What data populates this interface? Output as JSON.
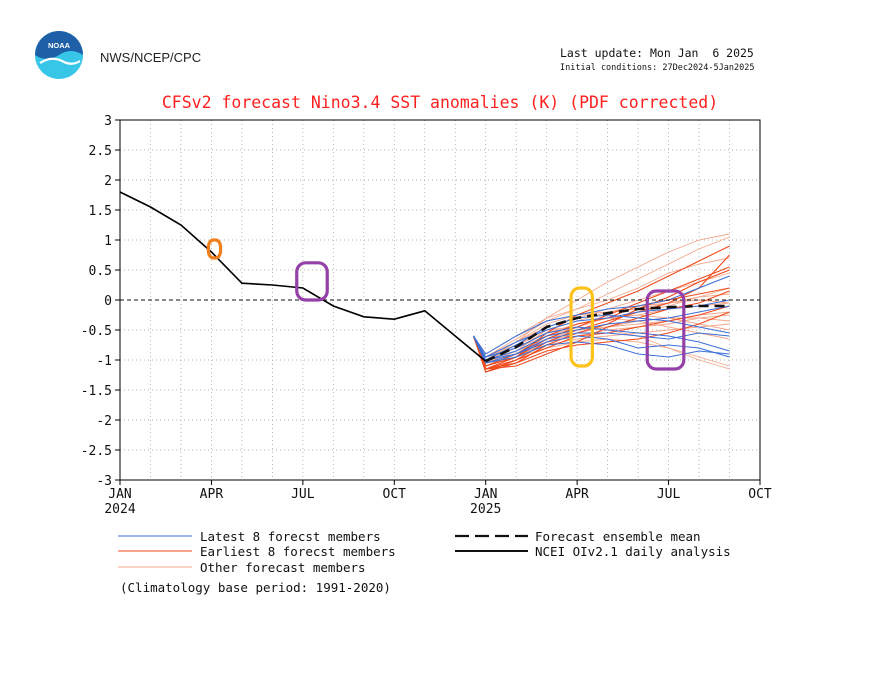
{
  "header": {
    "agency": "NWS/NCEP/CPC",
    "logo_text": "NOAA",
    "last_update": "Last update: Mon Jan  6 2025",
    "initial_conditions": "Initial conditions: 27Dec2024-5Jan2025"
  },
  "colors": {
    "title": "#ff2020",
    "latest": "#3a6fd8",
    "earliest": "#f04a1c",
    "other": "#f4a78c",
    "mean": "#111111",
    "observed": "#000000",
    "marker_orange": "#f07f1c",
    "marker_purple": "#9440a8",
    "marker_yellow": "#ffc21a",
    "logo_blue": "#1f5fa8",
    "logo_cyan": "#37c6e8"
  },
  "chart_data": {
    "type": "line",
    "title": "CFSv2 forecast Nino3.4 SST anomalies (K) (PDF corrected)",
    "xlabel": "",
    "ylabel": "",
    "ylim": [
      -3,
      3
    ],
    "yticks": [
      "3",
      "2.5",
      "2",
      "1.5",
      "1",
      "0.5",
      "0",
      "-0.5",
      "-1",
      "-1.5",
      "-2",
      "-2.5",
      "-3"
    ],
    "ytick_values": [
      3,
      2.5,
      2,
      1.5,
      1,
      0.5,
      0,
      -0.5,
      -1,
      -1.5,
      -2,
      -2.5,
      -3
    ],
    "x_range_months": [
      0,
      21
    ],
    "xticks": [
      {
        "month": 0,
        "label": "JAN",
        "year": "2024"
      },
      {
        "month": 3,
        "label": "APR",
        "year": ""
      },
      {
        "month": 6,
        "label": "JUL",
        "year": ""
      },
      {
        "month": 9,
        "label": "OCT",
        "year": ""
      },
      {
        "month": 12,
        "label": "JAN",
        "year": "2025"
      },
      {
        "month": 15,
        "label": "APR",
        "year": ""
      },
      {
        "month": 18,
        "label": "JUL",
        "year": ""
      },
      {
        "month": 21,
        "label": "OCT",
        "year": ""
      }
    ],
    "observed": {
      "name": "NCEI OIv2.1 daily analysis",
      "x": [
        0,
        1,
        2,
        3,
        4,
        5,
        6,
        7,
        8,
        9,
        10,
        11,
        12
      ],
      "y": [
        1.8,
        1.55,
        1.25,
        0.8,
        0.28,
        0.25,
        0.2,
        -0.1,
        -0.28,
        -0.32,
        -0.18,
        -0.6,
        -1.02
      ]
    },
    "ensemble_mean": {
      "name": "Forecast ensemble mean",
      "x": [
        12,
        13,
        14,
        15,
        16,
        17,
        18,
        19,
        20
      ],
      "y": [
        -1.02,
        -0.78,
        -0.45,
        -0.3,
        -0.22,
        -0.15,
        -0.12,
        -0.1,
        -0.1
      ]
    },
    "member_x": [
      11.6,
      12,
      13,
      14,
      15,
      16,
      17,
      18,
      19,
      20
    ],
    "latest_members": {
      "name": "Latest 8 forecst members",
      "values": [
        [
          -0.6,
          -1.0,
          -0.9,
          -0.7,
          -0.6,
          -0.65,
          -0.8,
          -0.75,
          -0.8,
          -0.95
        ],
        [
          -0.6,
          -0.95,
          -0.8,
          -0.55,
          -0.45,
          -0.5,
          -0.55,
          -0.6,
          -0.7,
          -0.85
        ],
        [
          -0.6,
          -1.05,
          -0.95,
          -0.75,
          -0.7,
          -0.75,
          -0.9,
          -0.95,
          -0.85,
          -0.9
        ],
        [
          -0.6,
          -0.95,
          -0.7,
          -0.5,
          -0.35,
          -0.3,
          -0.2,
          -0.15,
          -0.1,
          0.0
        ],
        [
          -0.6,
          -1.0,
          -0.85,
          -0.6,
          -0.5,
          -0.4,
          -0.35,
          -0.3,
          -0.2,
          -0.1
        ],
        [
          -0.6,
          -0.9,
          -0.6,
          -0.35,
          -0.25,
          -0.15,
          -0.1,
          0.0,
          0.2,
          0.4
        ],
        [
          -0.6,
          -1.05,
          -0.9,
          -0.65,
          -0.55,
          -0.55,
          -0.6,
          -0.65,
          -0.55,
          -0.6
        ],
        [
          -0.6,
          -1.0,
          -0.75,
          -0.45,
          -0.3,
          -0.25,
          -0.3,
          -0.35,
          -0.45,
          -0.55
        ]
      ]
    },
    "earliest_members": {
      "name": "Earliest 8 forecst members",
      "values": [
        [
          -0.6,
          -1.15,
          -0.95,
          -0.55,
          -0.25,
          -0.05,
          0.15,
          0.4,
          0.65,
          0.9
        ],
        [
          -0.6,
          -1.2,
          -1.0,
          -0.7,
          -0.5,
          -0.35,
          -0.2,
          -0.05,
          0.2,
          0.75
        ],
        [
          -0.6,
          -1.15,
          -1.05,
          -0.85,
          -0.75,
          -0.7,
          -0.65,
          -0.55,
          -0.4,
          -0.2
        ],
        [
          -0.6,
          -1.1,
          -0.9,
          -0.6,
          -0.4,
          -0.3,
          -0.1,
          0.0,
          0.1,
          0.2
        ],
        [
          -0.6,
          -1.2,
          -1.05,
          -0.75,
          -0.55,
          -0.4,
          -0.15,
          0.05,
          0.3,
          0.5
        ],
        [
          -0.6,
          -1.15,
          -1.1,
          -0.9,
          -0.7,
          -0.45,
          -0.3,
          -0.15,
          -0.05,
          0.15
        ],
        [
          -0.6,
          -1.1,
          -0.95,
          -0.65,
          -0.45,
          -0.25,
          -0.05,
          0.15,
          0.35,
          0.55
        ],
        [
          -0.6,
          -1.15,
          -1.0,
          -0.8,
          -0.6,
          -0.55,
          -0.45,
          -0.35,
          -0.25,
          -0.1
        ]
      ]
    },
    "other_members": {
      "name": "Other forecast members",
      "values": [
        [
          -0.6,
          -1.0,
          -0.7,
          -0.3,
          0.0,
          0.3,
          0.55,
          0.8,
          1.0,
          1.1
        ],
        [
          -0.6,
          -0.95,
          -0.65,
          -0.35,
          -0.15,
          0.1,
          0.35,
          0.6,
          0.85,
          1.05
        ],
        [
          -0.6,
          -1.05,
          -0.85,
          -0.6,
          -0.5,
          -0.45,
          -0.4,
          -0.35,
          -0.25,
          -0.2
        ],
        [
          -0.6,
          -1.0,
          -0.75,
          -0.5,
          -0.45,
          -0.5,
          -0.6,
          -0.8,
          -1.0,
          -1.15
        ],
        [
          -0.6,
          -0.95,
          -0.7,
          -0.4,
          -0.25,
          -0.2,
          -0.15,
          -0.05,
          0.05,
          0.1
        ],
        [
          -0.6,
          -1.1,
          -0.95,
          -0.7,
          -0.55,
          -0.45,
          -0.35,
          -0.3,
          -0.3,
          -0.35
        ],
        [
          -0.6,
          -1.0,
          -0.8,
          -0.55,
          -0.4,
          -0.3,
          -0.25,
          -0.15,
          -0.1,
          -0.05
        ],
        [
          -0.6,
          -0.9,
          -0.6,
          -0.3,
          -0.15,
          0.0,
          0.2,
          0.45,
          0.6,
          0.7
        ],
        [
          -0.6,
          -1.05,
          -0.9,
          -0.75,
          -0.65,
          -0.6,
          -0.55,
          -0.5,
          -0.45,
          -0.4
        ],
        [
          -0.6,
          -1.0,
          -0.85,
          -0.65,
          -0.5,
          -0.35,
          -0.2,
          -0.1,
          0.05,
          0.2
        ],
        [
          -0.6,
          -0.95,
          -0.8,
          -0.6,
          -0.45,
          -0.3,
          -0.25,
          -0.3,
          -0.4,
          -0.5
        ],
        [
          -0.6,
          -1.1,
          -0.95,
          -0.8,
          -0.7,
          -0.65,
          -0.7,
          -0.8,
          -0.95,
          -1.1
        ],
        [
          -0.6,
          -1.0,
          -0.7,
          -0.45,
          -0.3,
          -0.15,
          0.0,
          0.15,
          0.3,
          0.45
        ],
        [
          -0.6,
          -0.95,
          -0.75,
          -0.55,
          -0.4,
          -0.3,
          -0.35,
          -0.45,
          -0.55,
          -0.65
        ],
        [
          -0.6,
          -1.05,
          -0.85,
          -0.5,
          -0.35,
          -0.2,
          -0.1,
          -0.05,
          0.0,
          -0.05
        ],
        [
          -0.6,
          -1.0,
          -0.9,
          -0.7,
          -0.6,
          -0.5,
          -0.45,
          -0.4,
          -0.3,
          -0.25
        ]
      ]
    },
    "highlights": [
      {
        "color": "orange",
        "x_range": [
          2.9,
          3.3
        ],
        "y_range": [
          0.7,
          1.0
        ]
      },
      {
        "color": "purple",
        "x_range": [
          5.8,
          6.8
        ],
        "y_range": [
          0.0,
          0.62
        ]
      },
      {
        "color": "yellow",
        "x_range": [
          14.8,
          15.5
        ],
        "y_range": [
          -1.1,
          0.2
        ]
      },
      {
        "color": "purple",
        "x_range": [
          17.3,
          18.5
        ],
        "y_range": [
          -1.15,
          0.15
        ]
      }
    ]
  },
  "legend": {
    "latest": "Latest 8 forecst members",
    "earliest": "Earliest 8 forecst members",
    "other": "Other forecast members",
    "mean": "Forecast ensemble mean",
    "observed": "NCEI OIv2.1 daily analysis",
    "climatology": "(Climatology base period: 1991-2020)"
  }
}
